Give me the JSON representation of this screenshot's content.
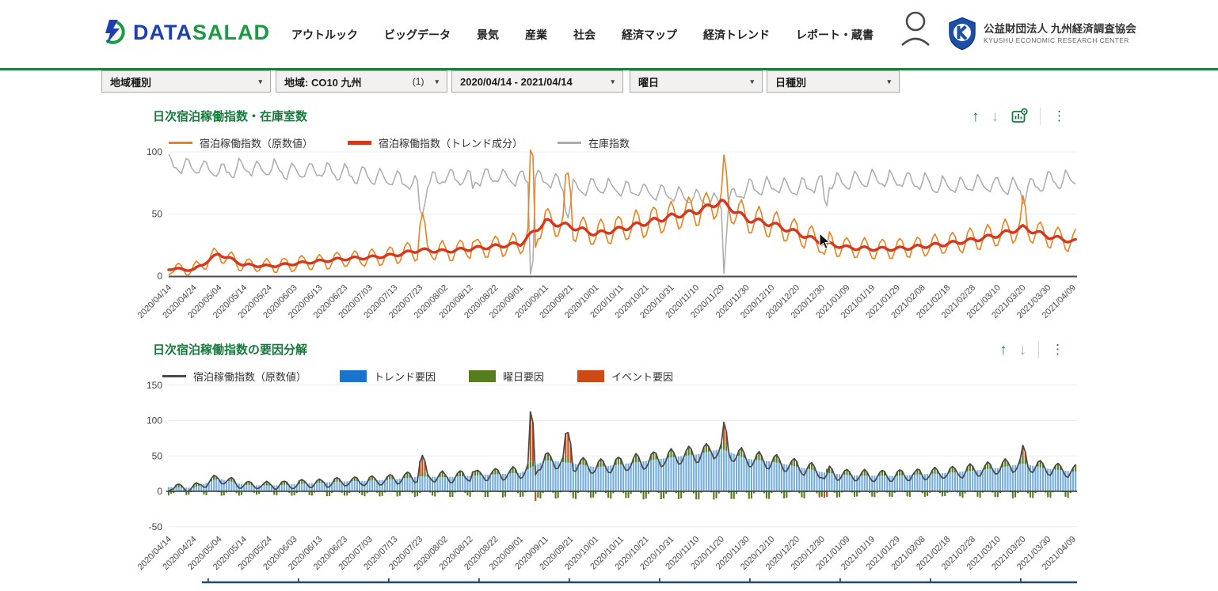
{
  "header": {
    "logo_text_data": "DATA",
    "logo_text_salad": "SALAD",
    "nav_items": [
      "アウトルック",
      "ビッグデータ",
      "景気",
      "産業",
      "社会",
      "経済マップ",
      "経済トレンド",
      "レポート・蔵書"
    ],
    "org_name_ja": "公益財団法人 九州経済調査協会",
    "org_name_en": "KYUSHU ECONOMIC RESEARCH CENTER"
  },
  "filters": [
    {
      "label": "地域種別",
      "caret": "▾"
    },
    {
      "label": "地域: CO10 九州",
      "count": "(1)",
      "caret": "▾"
    },
    {
      "label": "2020/04/14 - 2021/04/14",
      "caret": "▾"
    },
    {
      "label": "曜日",
      "caret": "▾"
    },
    {
      "label": "日種別",
      "caret": "▾"
    }
  ],
  "colors": {
    "accent_green": "#157A3C",
    "header_rule": "#1B7E3C",
    "raw_orange": "#E8821E",
    "trend_red": "#D6381C",
    "inventory_gray": "#ABABAB",
    "bar_blue_fill": "#74AEDF",
    "legend_blue": "#1874CD",
    "weekday_green": "#567D1E",
    "event_orange": "#CC4A16",
    "line_black": "#4A4A4A"
  },
  "chart_data": [
    {
      "id": "daily-occupancy",
      "type": "line",
      "title": "日次宿泊稼働指数・在庫室数",
      "ylim": [
        0,
        100
      ],
      "yticks": [
        0,
        50,
        100
      ],
      "x_tick_step_days": 10,
      "grid": "horizontal-light",
      "legend_position": "top",
      "x_tick_labels": [
        "2020/04/14",
        "2020/04/24",
        "2020/05/04",
        "2020/05/14",
        "2020/05/24",
        "2020/06/03",
        "2020/06/13",
        "2020/06/23",
        "2020/07/03",
        "2020/07/13",
        "2020/07/23",
        "2020/08/02",
        "2020/08/12",
        "2020/08/22",
        "2020/09/01",
        "2020/09/11",
        "2020/09/21",
        "2020/10/01",
        "2020/10/11",
        "2020/10/21",
        "2020/10/31",
        "2020/11/10",
        "2020/11/20",
        "2020/11/30",
        "2020/12/10",
        "2020/12/20",
        "2020/12/30",
        "2021/01/09",
        "2021/01/19",
        "2021/01/29",
        "2021/02/08",
        "2021/02/18",
        "2021/02/28",
        "2021/03/10",
        "2021/03/20",
        "2021/03/30",
        "2021/04/09"
      ],
      "weekly": {
        "base": 4,
        "slope": 0.18,
        "max": 12,
        "note": "weekend-peaking weekly cycle added to trend for raw series"
      },
      "series": [
        {
          "name": "宿泊稼働指数（原数値）",
          "color": "#E8821E",
          "style": "thin-noisy-line",
          "keyframe_values": [
            6,
            5,
            18,
            9,
            8,
            10,
            12,
            14,
            15,
            17,
            21,
            20,
            22,
            24,
            26,
            44,
            40,
            34,
            38,
            43,
            48,
            52,
            60,
            46,
            42,
            35,
            27,
            23,
            22,
            22,
            24,
            26,
            29,
            33,
            39,
            32,
            28
          ]
        },
        {
          "name": "宿泊稼働指数（トレンド成分）",
          "color": "#D6381C",
          "style": "thick-smooth-line",
          "keyframe_values": [
            6,
            5,
            18,
            9,
            8,
            10,
            12,
            14,
            15,
            17,
            21,
            20,
            22,
            24,
            26,
            44,
            40,
            34,
            38,
            43,
            48,
            52,
            60,
            46,
            42,
            35,
            27,
            23,
            22,
            22,
            24,
            26,
            29,
            33,
            39,
            32,
            28
          ]
        },
        {
          "name": "在庫指数",
          "color": "#ABABAB",
          "style": "thin-noisy-line",
          "weekly_antiphase": true,
          "keyframe_values": [
            90,
            88,
            84,
            87,
            86,
            84,
            85,
            82,
            80,
            78,
            72,
            80,
            78,
            80,
            78,
            78,
            70,
            72,
            70,
            68,
            66,
            63,
            58,
            70,
            72,
            70,
            74,
            76,
            78,
            77,
            75,
            72,
            74,
            73,
            70,
            76,
            78
          ]
        }
      ],
      "events": [
        {
          "day": 100,
          "raw": 22,
          "inventory": -18
        },
        {
          "day": 101,
          "raw": 24,
          "inventory": -22
        },
        {
          "day": 102,
          "raw": 15,
          "inventory": -10
        },
        {
          "day": 121,
          "raw": 6,
          "inventory": -6
        },
        {
          "day": 144,
          "raw": 70,
          "inventory": -72
        },
        {
          "day": 145,
          "raw": 55,
          "inventory": -60
        },
        {
          "day": 146,
          "raw": -12,
          "inventory": 0
        },
        {
          "day": 158,
          "raw": 30,
          "inventory": -15
        },
        {
          "day": 159,
          "raw": 36,
          "inventory": -18
        },
        {
          "day": 160,
          "raw": 28,
          "inventory": -12
        },
        {
          "day": 221,
          "raw": 27,
          "inventory": -52
        },
        {
          "day": 222,
          "raw": 20,
          "inventory": -25
        },
        {
          "day": 261,
          "raw": -6,
          "inventory": -12
        },
        {
          "day": 262,
          "raw": -8,
          "inventory": -16
        },
        {
          "day": 340,
          "raw": 14,
          "inventory": -8
        },
        {
          "day": 341,
          "raw": 10,
          "inventory": -5
        }
      ]
    },
    {
      "id": "factor-decomposition",
      "type": "stacked-bar+line",
      "title": "日次宿泊稼働指数の要因分解",
      "ylim": [
        -60,
        160
      ],
      "yticks": [
        -50,
        0,
        50,
        100,
        150
      ],
      "x_tick_step_days": 10,
      "grid": "horizontal-light",
      "legend_position": "top",
      "x_tick_labels": [
        "2020/04/14",
        "2020/04/24",
        "2020/05/04",
        "2020/05/14",
        "2020/05/24",
        "2020/06/03",
        "2020/06/13",
        "2020/06/23",
        "2020/07/03",
        "2020/07/13",
        "2020/07/23",
        "2020/08/02",
        "2020/08/12",
        "2020/08/22",
        "2020/09/01",
        "2020/09/11",
        "2020/09/21",
        "2020/10/01",
        "2020/10/11",
        "2020/10/21",
        "2020/10/31",
        "2020/11/10",
        "2020/11/20",
        "2020/11/30",
        "2020/12/10",
        "2020/12/20",
        "2020/12/30",
        "2021/01/09",
        "2021/01/19",
        "2021/01/29",
        "2021/02/08",
        "2021/02/18",
        "2021/02/28",
        "2021/03/10",
        "2021/03/20",
        "2021/03/30",
        "2021/04/09"
      ],
      "series": [
        {
          "name": "宿泊稼働指数（原数値）",
          "color": "#4A4A4A",
          "type": "line",
          "derivation": "trend+weekday+event"
        },
        {
          "name": "トレンド要因",
          "color": "#1874CD",
          "bar_fill": "#74AEDF",
          "type": "bar",
          "keyframe_values": [
            6,
            5,
            18,
            9,
            8,
            10,
            12,
            14,
            15,
            17,
            21,
            20,
            22,
            24,
            26,
            44,
            40,
            34,
            38,
            43,
            48,
            52,
            60,
            46,
            42,
            35,
            27,
            23,
            22,
            22,
            24,
            26,
            29,
            33,
            39,
            32,
            28
          ]
        },
        {
          "name": "曜日要因",
          "color": "#567D1E",
          "type": "bar",
          "derivation": "weekly weekend-peaking cycle"
        },
        {
          "name": "イベント要因",
          "color": "#CC4A16",
          "type": "bar",
          "derivation": "event day deltas"
        }
      ],
      "events": [
        {
          "day": 100,
          "raw": 22
        },
        {
          "day": 101,
          "raw": 24
        },
        {
          "day": 102,
          "raw": 15
        },
        {
          "day": 121,
          "raw": 6
        },
        {
          "day": 144,
          "raw": 70
        },
        {
          "day": 145,
          "raw": 55
        },
        {
          "day": 146,
          "raw": -12
        },
        {
          "day": 158,
          "raw": 30
        },
        {
          "day": 159,
          "raw": 36
        },
        {
          "day": 160,
          "raw": 28
        },
        {
          "day": 221,
          "raw": 27
        },
        {
          "day": 222,
          "raw": 20
        },
        {
          "day": 261,
          "raw": -6
        },
        {
          "day": 262,
          "raw": -8
        },
        {
          "day": 340,
          "raw": 14
        },
        {
          "day": 341,
          "raw": 10
        }
      ]
    }
  ],
  "footer_strip": {
    "color": "#27496D"
  }
}
